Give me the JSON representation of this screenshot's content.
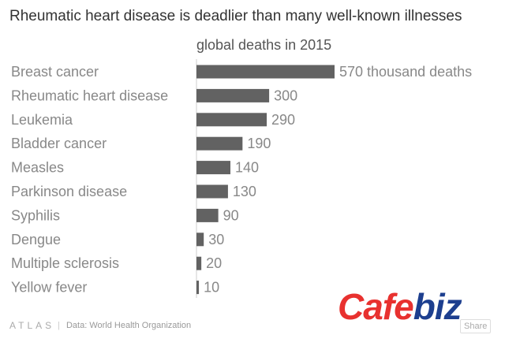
{
  "header": {
    "title": "Rheumatic heart disease is deadlier than many well-known illnesses",
    "subtitle": "global deaths in 2015"
  },
  "chart_data": {
    "type": "bar",
    "orientation": "horizontal",
    "categories": [
      "Breast cancer",
      "Rheumatic heart disease",
      "Leukemia",
      "Bladder cancer",
      "Measles",
      "Parkinson disease",
      "Syphilis",
      "Dengue",
      "Multiple sclerosis",
      "Yellow fever"
    ],
    "values": [
      570,
      300,
      290,
      190,
      140,
      130,
      90,
      30,
      20,
      10
    ],
    "value_labels": [
      "570 thousand deaths",
      "300",
      "290",
      "190",
      "140",
      "130",
      "90",
      "30",
      "20",
      "10"
    ],
    "unit": "thousand deaths",
    "xlim": [
      0,
      600
    ],
    "bar_color": "#626262",
    "grid": false
  },
  "footer": {
    "brand": "ATLAS",
    "source": "Data: World Health Organization",
    "share_label": "Share"
  },
  "watermark": {
    "logo_part1": "Cafe",
    "logo_part2": "biz",
    "color_red": "#e8312f",
    "color_blue": "#1d3f8f"
  }
}
